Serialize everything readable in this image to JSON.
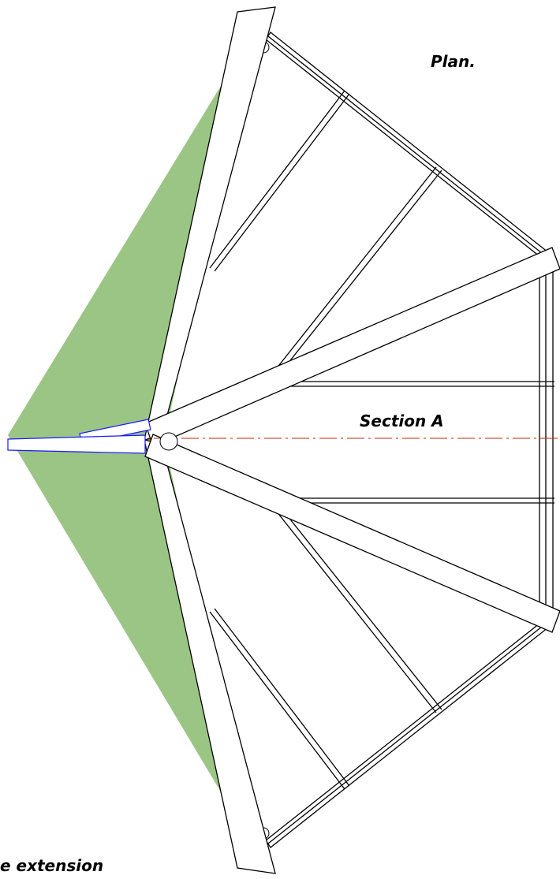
{
  "labels": {
    "plan": "Plan.",
    "section": "Section A",
    "extension": "e extension"
  },
  "colors": {
    "fill_area": "#9bc585",
    "outline": "#000000",
    "extension_outline": "#1a1aff",
    "section_line": "#cc2200",
    "background": "#ffffff"
  }
}
